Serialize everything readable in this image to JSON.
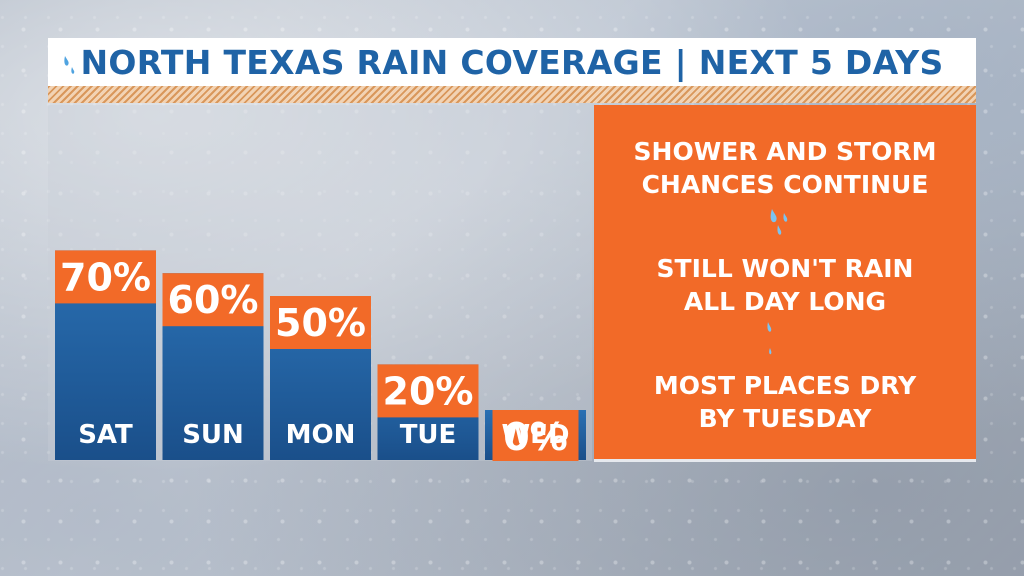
{
  "title": "NORTH TEXAS RAIN COVERAGE | NEXT 5 DAYS",
  "colors": {
    "title_text": "#1f63a6",
    "bar_top": "#2a70b3",
    "bar_bottom": "#1a4f8a",
    "value_box": "#f26a28",
    "info_panel": "#f26a28",
    "drop": "#4fa3e0"
  },
  "chart_data": {
    "type": "bar",
    "title": "NORTH TEXAS RAIN COVERAGE | NEXT 5 DAYS",
    "categories": [
      "SAT",
      "SUN",
      "MON",
      "TUE",
      "WED"
    ],
    "values": [
      70,
      60,
      50,
      20,
      0
    ],
    "value_labels": [
      "70%",
      "60%",
      "50%",
      "20%",
      "0%"
    ],
    "unit": "%",
    "xlabel": "",
    "ylabel": "",
    "ylim": [
      0,
      100
    ],
    "grid": false,
    "legend": "none"
  },
  "info": {
    "line1": "SHOWER AND STORM\nCHANCES CONTINUE",
    "line2": "STILL WON'T RAIN\nALL DAY LONG",
    "line3": "MOST PLACES DRY\nBY TUESDAY"
  },
  "icons": [
    "raindrop-icon"
  ]
}
